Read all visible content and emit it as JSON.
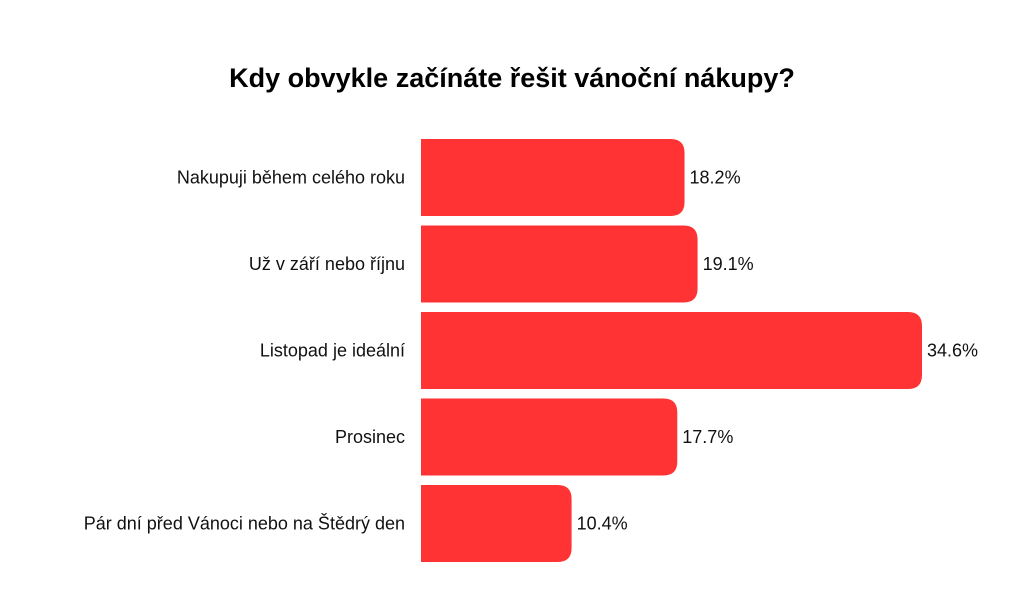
{
  "chart_data": {
    "type": "bar",
    "orientation": "horizontal",
    "title": "Kdy obvykle začínáte řešit vánoční nákupy?",
    "xlabel": "",
    "ylabel": "",
    "categories": [
      "Nakupuji během celého roku",
      "Už v září nebo říjnu",
      "Listopad je ideální",
      "Prosinec",
      "Pár dní před Vánoci nebo na Štědrý den"
    ],
    "values": [
      18.2,
      19.1,
      34.6,
      17.7,
      10.4
    ],
    "value_labels": [
      "18.2%",
      "19.1%",
      "34.6%",
      "17.7%",
      "10.4%"
    ],
    "unit": "%",
    "xlim": [
      0,
      34.6
    ],
    "grid": false,
    "legend": "none",
    "bar_color": "#ff3333"
  }
}
